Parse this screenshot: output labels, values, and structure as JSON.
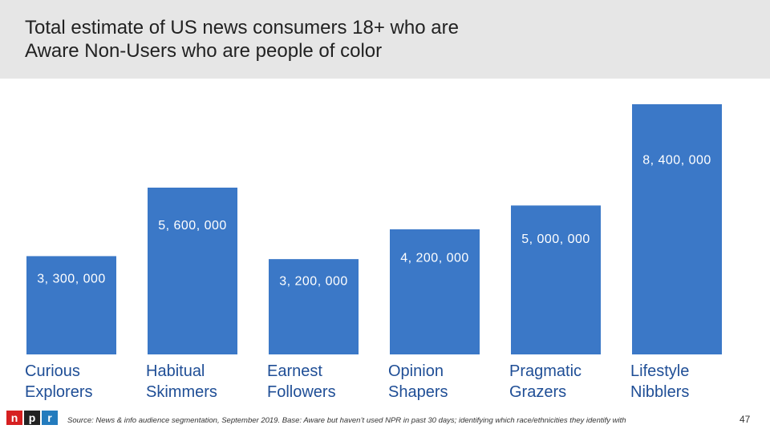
{
  "header": {
    "title_line1": "Total estimate of US news consumers 18+ who are",
    "title_line2": "Aware Non-Users who are people of color"
  },
  "chart_data": {
    "type": "bar",
    "categories": [
      [
        "Curious",
        "Explorers"
      ],
      [
        "Habitual",
        "Skimmers"
      ],
      [
        "Earnest",
        "Followers"
      ],
      [
        "Opinion",
        "Shapers"
      ],
      [
        "Pragmatic",
        "Grazers"
      ],
      [
        "Lifestyle",
        "Nibblers"
      ]
    ],
    "values": [
      3300000,
      5600000,
      3200000,
      4200000,
      5000000,
      8400000
    ],
    "value_labels": [
      "3, 300, 000",
      "5, 600, 000",
      "3, 200, 000",
      "4, 200, 000",
      "5, 000, 000",
      "8, 400, 000"
    ],
    "colors": {
      "bar": "#3b78c7",
      "label": "#ffffff",
      "category": "#1f4e96"
    }
  },
  "footer": {
    "logo_letters": [
      "n",
      "p",
      "r"
    ],
    "logo_colors": [
      "#d62021",
      "#222222",
      "#237bbd"
    ],
    "source": "Source: News & info audience segmentation, September 2019. Base: Aware but haven’t used NPR in past 30 days; identifying which race/ethnicities they identify with",
    "page_number": "47"
  }
}
